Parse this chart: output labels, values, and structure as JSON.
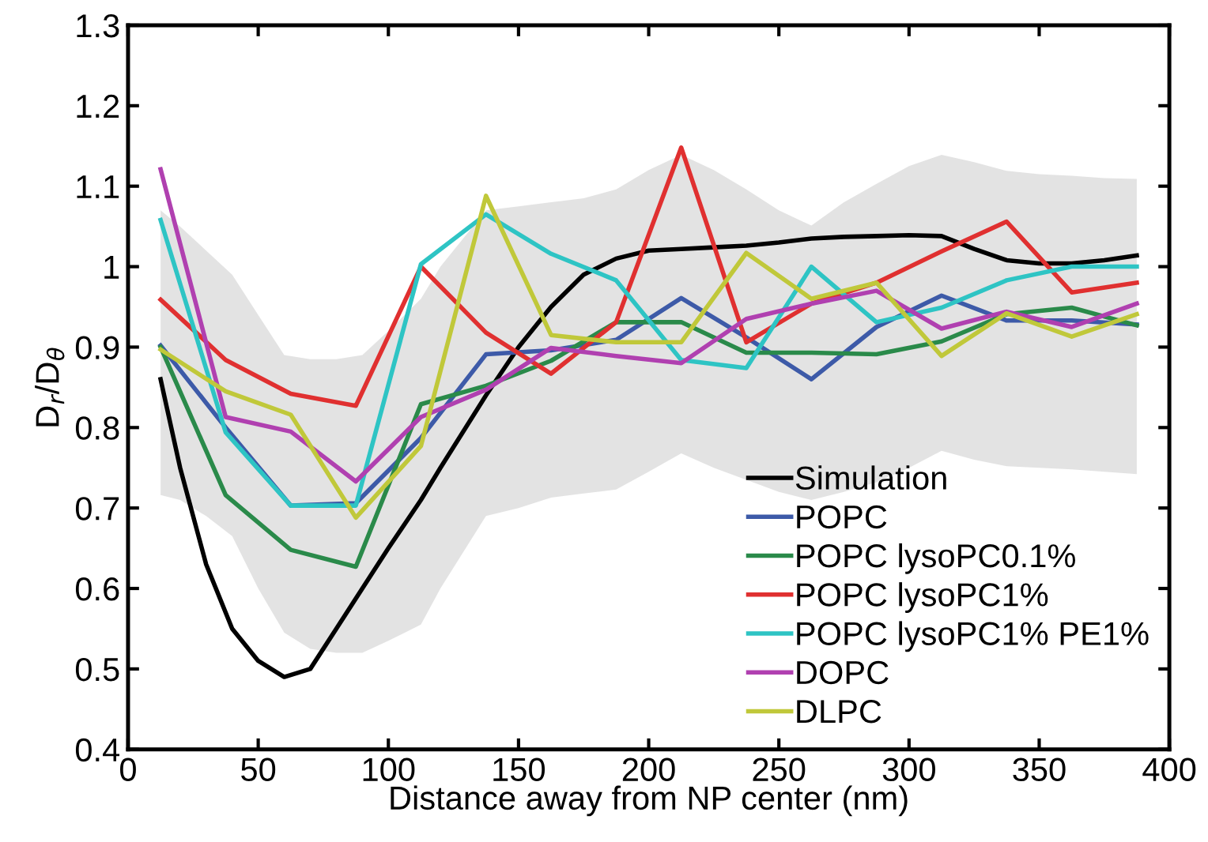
{
  "chart_data": {
    "type": "line",
    "xlabel": "Distance away from NP center (nm)",
    "ylabel": "D$_{r}$/D$_{θ}$",
    "xlim": [
      0,
      400
    ],
    "ylim": [
      0.4,
      1.3
    ],
    "xticks": [
      0,
      50,
      100,
      150,
      200,
      250,
      300,
      350,
      400
    ],
    "yticks": [
      0.4,
      0.5,
      0.6,
      0.7,
      0.8,
      0.9,
      1,
      1.1,
      1.2,
      1.3
    ],
    "grid": false,
    "legend": "bottom right",
    "marker": "none",
    "line_style": "solid",
    "x": [
      12.5,
      37.5,
      62.5,
      87.5,
      112.5,
      137.5,
      162.5,
      187.5,
      212.5,
      237.5,
      262.5,
      287.5,
      312.5,
      337.5,
      362.5,
      387.5
    ],
    "series": [
      {
        "name": "Simulation",
        "color": "#000000",
        "x": [
          12.5,
          20,
          30,
          40,
          50,
          60,
          70,
          80,
          90,
          100,
          112.5,
          120,
          137.5,
          150,
          162.5,
          175,
          187.5,
          200,
          212.5,
          225,
          237.5,
          250,
          262.5,
          275,
          287.5,
          300,
          312.5,
          325,
          337.5,
          350,
          362.5,
          375,
          387.5
        ],
        "values": [
          0.86,
          0.75,
          0.63,
          0.55,
          0.51,
          0.49,
          0.5,
          0.55,
          0.6,
          0.65,
          0.71,
          0.75,
          0.84,
          0.9,
          0.95,
          0.99,
          1.01,
          1.02,
          1.022,
          1.024,
          1.026,
          1.03,
          1.035,
          1.037,
          1.038,
          1.039,
          1.038,
          1.022,
          1.008,
          1.004,
          1.004,
          1.008,
          1.014
        ],
        "upper": [
          1.07,
          1.05,
          1.02,
          0.99,
          0.94,
          0.89,
          0.885,
          0.885,
          0.89,
          0.92,
          0.96,
          1.0,
          1.07,
          1.075,
          1.08,
          1.085,
          1.096,
          1.12,
          1.139,
          1.12,
          1.096,
          1.07,
          1.051,
          1.08,
          1.103,
          1.125,
          1.139,
          1.13,
          1.119,
          1.115,
          1.113,
          1.11,
          1.109
        ],
        "lower": [
          0.716,
          0.71,
          0.69,
          0.665,
          0.6,
          0.545,
          0.525,
          0.52,
          0.52,
          0.535,
          0.555,
          0.6,
          0.69,
          0.7,
          0.713,
          0.718,
          0.723,
          0.745,
          0.768,
          0.75,
          0.735,
          0.72,
          0.71,
          0.72,
          0.732,
          0.75,
          0.771,
          0.76,
          0.752,
          0.75,
          0.748,
          0.745,
          0.742
        ]
      },
      {
        "name": "POPC",
        "color": "#3d5aa8",
        "values": [
          0.902,
          0.8,
          0.703,
          0.706,
          0.787,
          0.891,
          0.896,
          0.909,
          0.961,
          0.912,
          0.86,
          0.925,
          0.964,
          0.933,
          0.933,
          0.928
        ]
      },
      {
        "name": "POPC lysoPC0.1%",
        "color": "#2a8a4a",
        "values": [
          0.9,
          0.716,
          0.648,
          0.627,
          0.829,
          0.852,
          0.883,
          0.931,
          0.931,
          0.893,
          0.893,
          0.891,
          0.907,
          0.941,
          0.949,
          0.927
        ]
      },
      {
        "name": "POPC lysoPC1%",
        "color": "#e03030",
        "values": [
          0.959,
          0.884,
          0.842,
          0.827,
          1.0,
          0.918,
          0.867,
          0.931,
          1.148,
          0.906,
          0.954,
          0.98,
          1.019,
          1.056,
          0.968,
          0.98
        ]
      },
      {
        "name": "POPC lysoPC1% PE1%",
        "color": "#2ec4c4",
        "values": [
          1.058,
          0.794,
          0.703,
          0.703,
          1.003,
          1.065,
          1.016,
          0.983,
          0.884,
          0.874,
          1.0,
          0.931,
          0.949,
          0.983,
          1.0,
          1.0
        ]
      },
      {
        "name": "DOPC",
        "color": "#b040b0",
        "values": [
          1.121,
          0.813,
          0.795,
          0.733,
          0.813,
          0.847,
          0.899,
          0.889,
          0.88,
          0.935,
          0.954,
          0.97,
          0.923,
          0.944,
          0.925,
          0.954
        ]
      },
      {
        "name": "DLPC",
        "color": "#c0c83a",
        "values": [
          0.897,
          0.845,
          0.816,
          0.688,
          0.777,
          1.088,
          0.915,
          0.906,
          0.906,
          1.017,
          0.96,
          0.98,
          0.889,
          0.942,
          0.913,
          0.941
        ]
      }
    ]
  }
}
